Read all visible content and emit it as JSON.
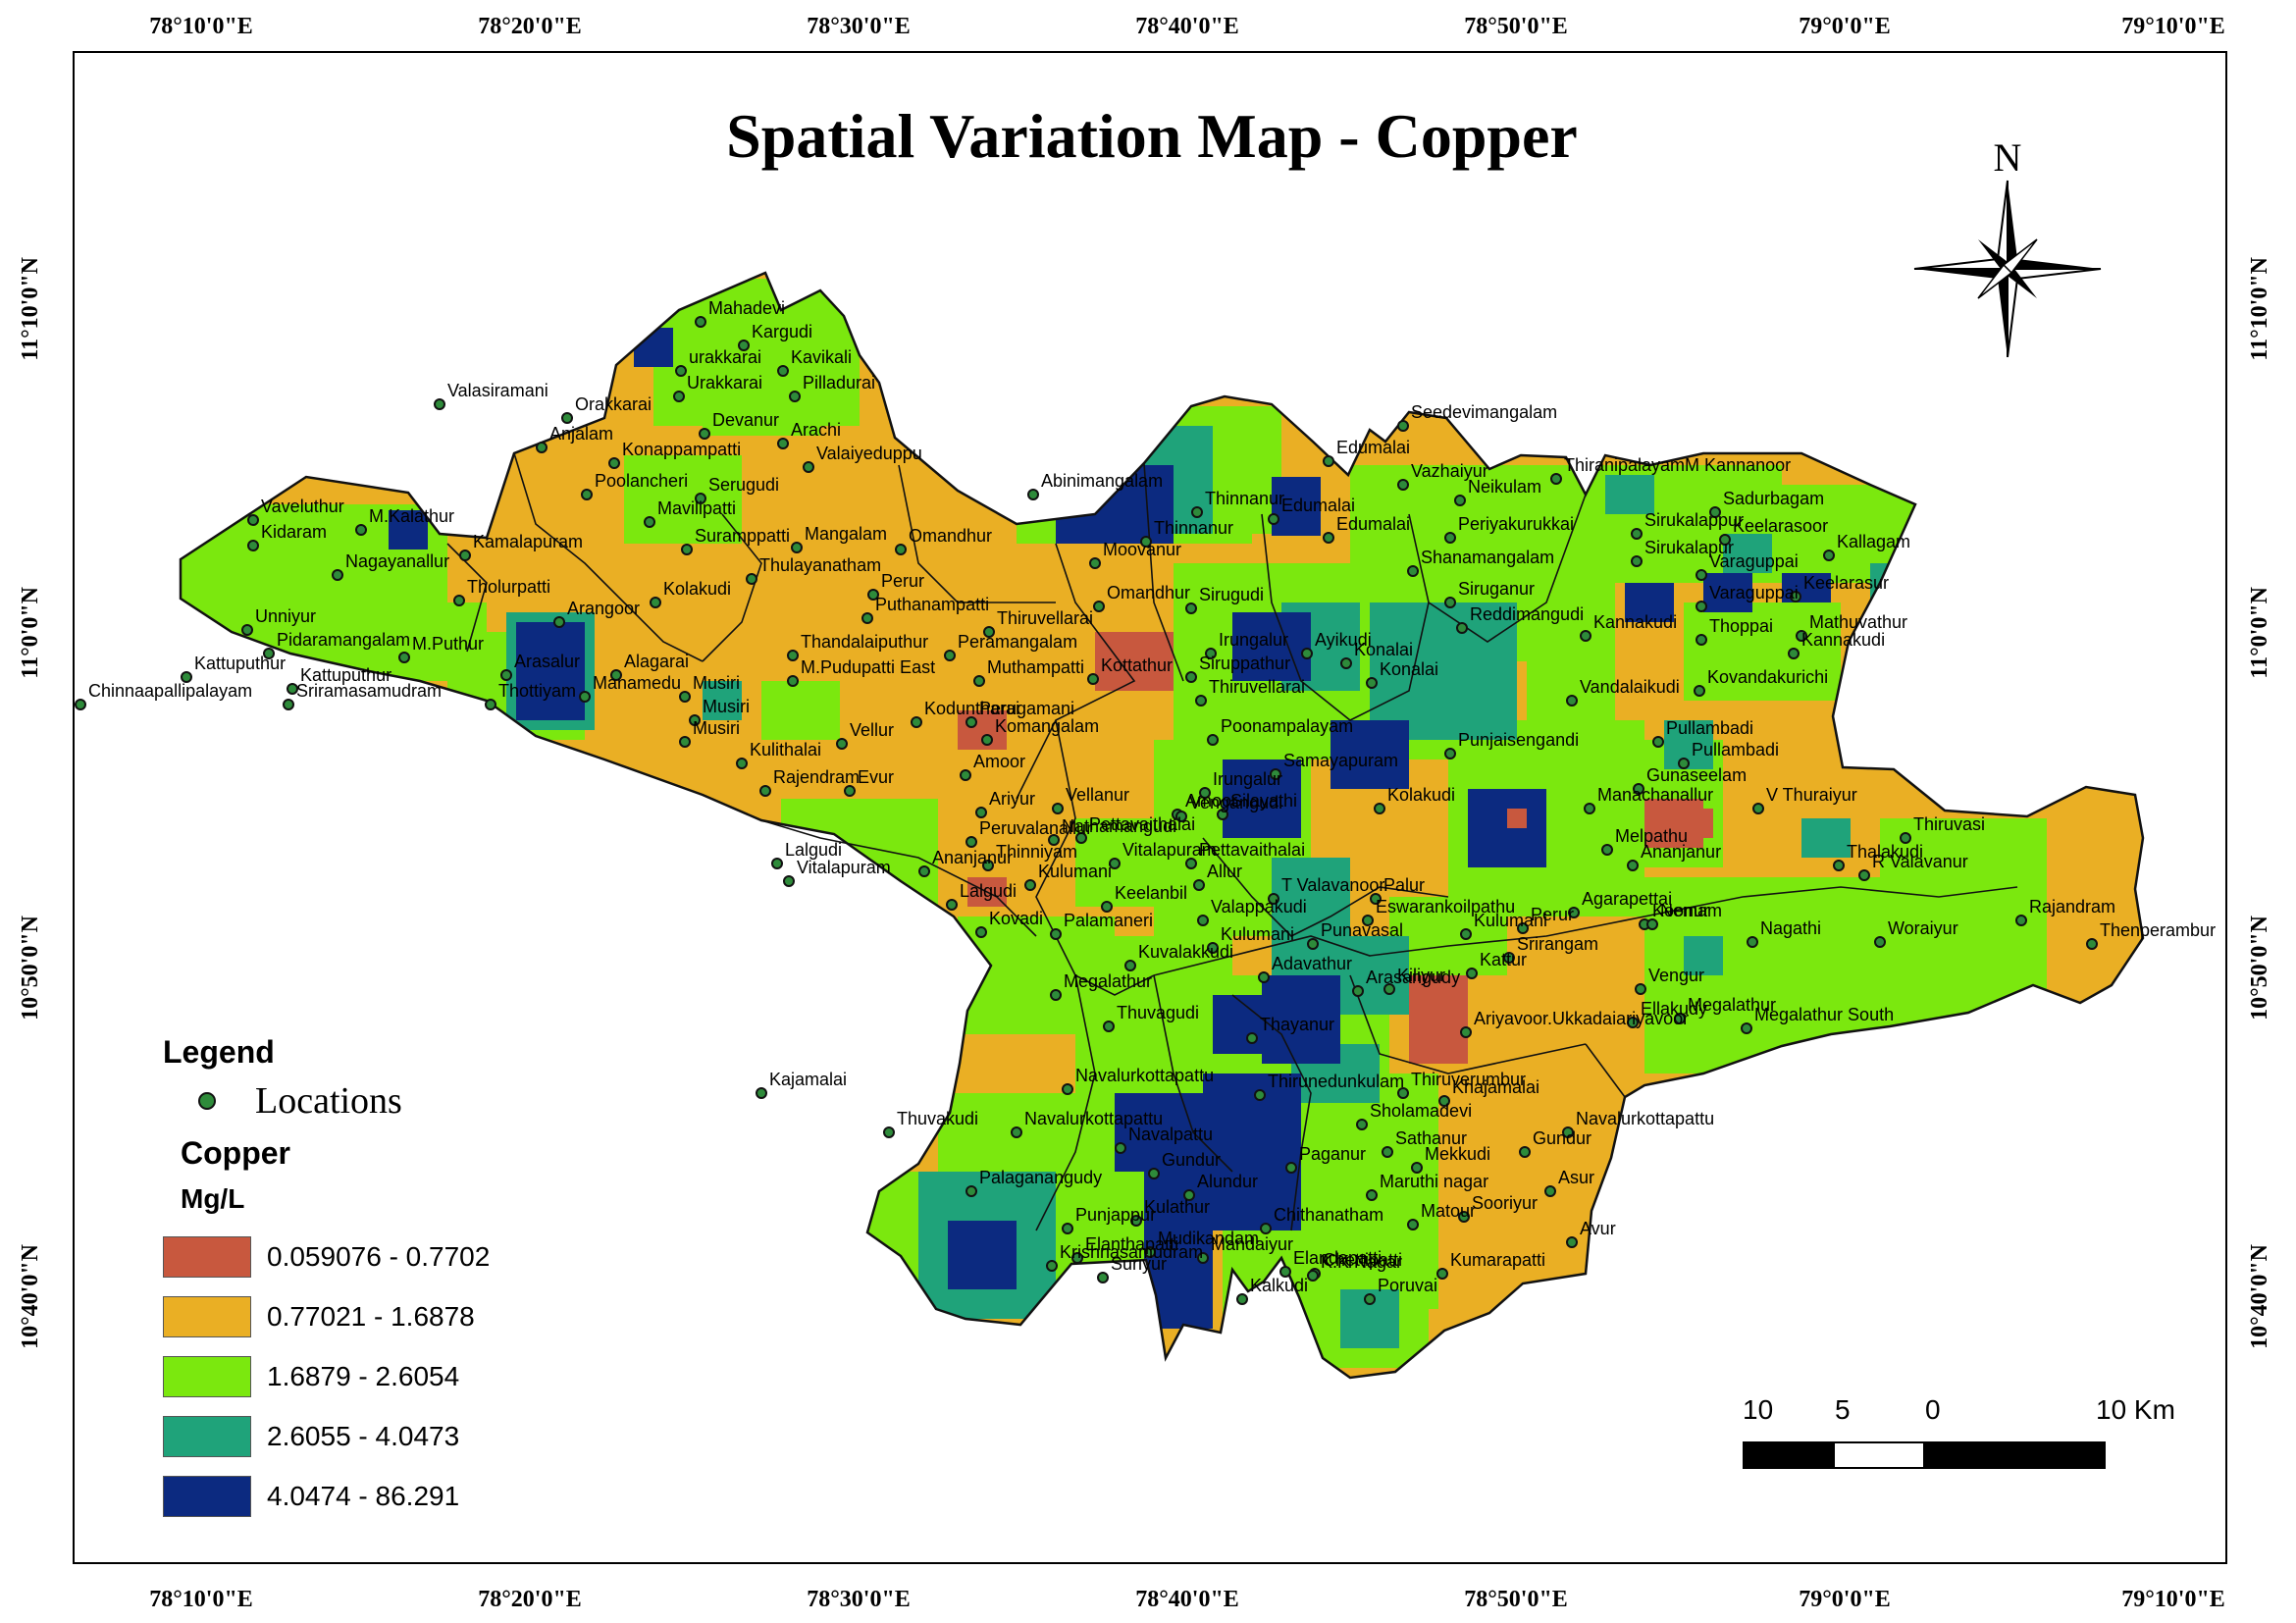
{
  "title": "Spatial Variation Map - Copper",
  "graticule": {
    "longitudes": [
      "78°10'0\"E",
      "78°20'0\"E",
      "78°30'0\"E",
      "78°40'0\"E",
      "78°50'0\"E",
      "79°0'0\"E",
      "79°10'0\"E"
    ],
    "latitudes": [
      "11°10'0\"N",
      "11°0'0\"N",
      "10°50'0\"N",
      "10°40'0\"N"
    ]
  },
  "north_arrow": {
    "label": "N"
  },
  "legend": {
    "title": "Legend",
    "point_label": "Locations",
    "variable": "Copper",
    "unit": "Mg/L",
    "classes": [
      {
        "label": "0.059076 - 0.7702",
        "color": "#c8583e"
      },
      {
        "label": "0.77021 - 1.6878",
        "color": "#eaaf24"
      },
      {
        "label": "1.6879 - 2.6054",
        "color": "#7be80e"
      },
      {
        "label": "2.6055 - 4.0473",
        "color": "#1fa37a"
      },
      {
        "label": "4.0474 - 86.291",
        "color": "#0c2a80"
      }
    ]
  },
  "scale_bar": {
    "labels": [
      "10",
      "5",
      "0",
      "10 Km"
    ]
  },
  "colors": {
    "low": "#c8583e",
    "moderate": "#eaaf24",
    "medium": "#7be80e",
    "high": "#1fa37a",
    "very_high": "#0c2a80",
    "point": "#2e8b3a"
  },
  "places": [
    "Mahadevi",
    "Kargudi",
    "urakkarai",
    "Kavikali",
    "Urakkarai",
    "Pilladurai",
    "Valasiramani",
    "Orakkarai",
    "Devanur",
    "Arachi",
    "Anjalam",
    "Konappampatti",
    "Valaiyeduppu",
    "Poolancheri",
    "Serugudi",
    "Mavilipatti",
    "Vaveluthur",
    "M.Kalathur",
    "Kidaram",
    "Kamalapuram",
    "Nagayanallur",
    "Suramppatti",
    "Mangalam",
    "Omandhur",
    "Abinimangalam",
    "Thinnanur",
    "Thinnanur",
    "Edumalai",
    "Seedevimangalam",
    "Edumalai",
    "Vazhaiyur",
    "Edumalai",
    "Neikulam",
    "ThiranipalayamM Kannanoor",
    "Sadurbagam",
    "Kallagam",
    "Periyakurukkai",
    "Sirukalappur",
    "Keelarasoor",
    "Sirukalapur",
    "Shanamangalam",
    "Varaguppai",
    "Keelarasur",
    "Varaguppai",
    "Siruganur",
    "Mathuvathur",
    "Unniyur",
    "Tholurpatti",
    "Arangoor",
    "Kolakudi",
    "Thulayanatham",
    "Perur",
    "Puthanampatti",
    "Thiruvellarai",
    "Omandhur",
    "Moovanur",
    "Sirugudi",
    "Reddimangudi",
    "Kannakudi",
    "Thoppai",
    "Kannakudi",
    "Pidaramangalam",
    "M.Puthur",
    "Alagarai",
    "Thandalaiputhur",
    "Peramangalam",
    "Irungalur",
    "Ayikudi",
    "Konalai",
    "Kattuputhur",
    "Kattuputhur",
    "Arasalur",
    "M.Pudupatti East",
    "Muthampatti",
    "Kottathur",
    "Siruppathur",
    "Konalai",
    "Vandalaikudi",
    "Kovandakurichi",
    "Chinnaapallipalayam",
    "Sriramasamudram",
    "Thottiyam",
    "Manamedu",
    "Musiri",
    "Koduntharai",
    "Perugamani",
    "Thiruvellarai",
    "Musiri",
    "Komangalam",
    "Musiri",
    "Vellur",
    "Poonampalayam",
    "Pullambadi",
    "Pullambadi",
    "Kulithalai",
    "Irungalur",
    "Punjaisengandi",
    "Amoor",
    "Samayapuram",
    "Rajendram",
    "Evur",
    "Gunaseelam",
    "Ariyur",
    "Vellanur",
    "Amoor",
    "Kolakudi",
    "Manachanallur",
    "V Thuraiyur",
    "Peruvalanallur",
    "Nathamangudi",
    "Pettavaithalai",
    "Vengangudi",
    "Silayathi",
    "Melpathu",
    "Thiruvasi",
    "Lalgudi",
    "Thinniyam",
    "Vitalapuram",
    "Pettavaithalai",
    "Ananjanur",
    "Thalakudi",
    "Vitalapuram",
    "Ananjanur",
    "Kulumani",
    "Allur",
    "Palur",
    "T Valavanoor",
    "R Valavanur",
    "Lalgudi",
    "Keelanbil",
    "Valappakudi",
    "Eswarankoilpathu",
    "Kulumani",
    "Perur",
    "Srirangam",
    "Agarapettai",
    "Koonur",
    "Nemam",
    "Kovadi",
    "Palamaneri",
    "Kulumani",
    "Punavasal",
    "Nagathi",
    "Rajandram",
    "Thenperambur",
    "Woraiyur",
    "Kuvalakkudi",
    "Adavathur",
    "Megalathur",
    "Kiliyur",
    "Vengur",
    "Kattur",
    "Ellakudy",
    "Megalathur",
    "Megalathur South",
    "Arasangudy",
    "Thuvagudi",
    "Thayanur",
    "Ariyavoor.Ukkadaiariyavoor",
    "Kajamalai",
    "Navalurkottapattu",
    "Thiruverumbur",
    "Thirunedunkulam",
    "Khajamalai",
    "Sholamadevi",
    "Navalurkottapattu",
    "Thuvakudi",
    "Navalurkottapattu",
    "Sathanur",
    "Gundur",
    "Navalpattu",
    "Paganur",
    "Mekkudi",
    "Gundur",
    "Palaganangudy",
    "Asur",
    "Kulathur",
    "Alundur",
    "Maruthi nagar",
    "Matour",
    "Sooriyur",
    "Punjappur",
    "Chithanatham",
    "Mudikandam",
    "Avur",
    "Elanthapatti",
    "Mandaiyur",
    "Kalkudi",
    "Elandapatti",
    "Chettipatti",
    "Poruvai",
    "K.K Nagar",
    "Kumarapatti",
    "Suriyur",
    "Krishnasamudram"
  ]
}
